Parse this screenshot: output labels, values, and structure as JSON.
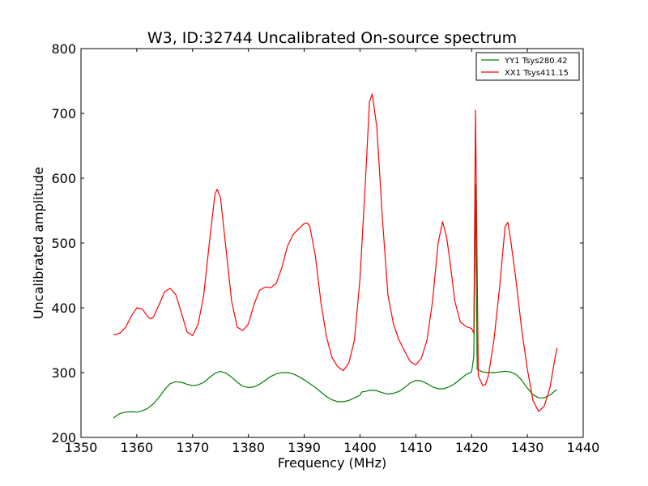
{
  "chart_data": {
    "type": "line",
    "title": "W3, ID:32744 Uncalibrated On-source spectrum",
    "xlabel": "Frequency (MHz)",
    "ylabel": "Uncalibrated amplitude",
    "xlim": [
      1350,
      1440
    ],
    "ylim": [
      200,
      800
    ],
    "xticks": [
      1350,
      1360,
      1370,
      1380,
      1390,
      1400,
      1410,
      1420,
      1430,
      1440
    ],
    "yticks": [
      200,
      300,
      400,
      500,
      600,
      700,
      800
    ],
    "grid": false,
    "legend_position": "top-right",
    "series": [
      {
        "name": "YY1 Tsys280.42",
        "color": "#008000",
        "points": [
          [
            1355.8,
            230
          ],
          [
            1357,
            237
          ],
          [
            1358,
            239
          ],
          [
            1359,
            239.5
          ],
          [
            1360,
            239
          ],
          [
            1361,
            241
          ],
          [
            1362,
            245
          ],
          [
            1363,
            252
          ],
          [
            1364,
            262
          ],
          [
            1365,
            274
          ],
          [
            1366,
            283
          ],
          [
            1367,
            286
          ],
          [
            1368,
            285
          ],
          [
            1369,
            282
          ],
          [
            1370,
            280
          ],
          [
            1371,
            281
          ],
          [
            1372,
            285
          ],
          [
            1373,
            292
          ],
          [
            1374,
            299
          ],
          [
            1375,
            302
          ],
          [
            1376,
            299
          ],
          [
            1377,
            293
          ],
          [
            1378,
            285
          ],
          [
            1379,
            279
          ],
          [
            1380,
            277
          ],
          [
            1381,
            278
          ],
          [
            1382,
            282
          ],
          [
            1383,
            288
          ],
          [
            1384,
            294
          ],
          [
            1385,
            298
          ],
          [
            1386,
            300
          ],
          [
            1387,
            300
          ],
          [
            1388,
            298
          ],
          [
            1389,
            294
          ],
          [
            1390,
            289
          ],
          [
            1391,
            283
          ],
          [
            1392,
            277
          ],
          [
            1393,
            270
          ],
          [
            1394,
            263
          ],
          [
            1395,
            258
          ],
          [
            1396,
            255
          ],
          [
            1397,
            255
          ],
          [
            1398,
            257
          ],
          [
            1399,
            261
          ],
          [
            1400,
            265
          ],
          [
            1400.3,
            270
          ],
          [
            1401,
            271
          ],
          [
            1402,
            273
          ],
          [
            1403,
            272
          ],
          [
            1404,
            269
          ],
          [
            1405,
            267
          ],
          [
            1406,
            268
          ],
          [
            1407,
            271
          ],
          [
            1408,
            277
          ],
          [
            1409,
            284
          ],
          [
            1410,
            288
          ],
          [
            1411,
            287
          ],
          [
            1412,
            283
          ],
          [
            1413,
            278
          ],
          [
            1414,
            275
          ],
          [
            1415,
            275
          ],
          [
            1416,
            278
          ],
          [
            1417,
            283
          ],
          [
            1418,
            290
          ],
          [
            1419,
            297
          ],
          [
            1420,
            301
          ],
          [
            1420.4,
            325
          ],
          [
            1420.7,
            590
          ],
          [
            1421,
            305
          ],
          [
            1422,
            301
          ],
          [
            1423,
            300
          ],
          [
            1424,
            300
          ],
          [
            1425,
            301
          ],
          [
            1426,
            302
          ],
          [
            1427,
            301
          ],
          [
            1428,
            297
          ],
          [
            1429,
            288
          ],
          [
            1430,
            276
          ],
          [
            1431,
            266
          ],
          [
            1432,
            261
          ],
          [
            1433,
            261
          ],
          [
            1434,
            265
          ],
          [
            1435,
            272
          ],
          [
            1435.3,
            274
          ]
        ]
      },
      {
        "name": "XX1 Tsys411.15",
        "color": "#ff0000",
        "points": [
          [
            1355.8,
            358
          ],
          [
            1357,
            361
          ],
          [
            1358,
            370
          ],
          [
            1359,
            387
          ],
          [
            1360,
            400
          ],
          [
            1361,
            398
          ],
          [
            1362,
            386
          ],
          [
            1362.5,
            383
          ],
          [
            1363,
            386
          ],
          [
            1364,
            405
          ],
          [
            1365,
            425
          ],
          [
            1366,
            430
          ],
          [
            1367,
            420
          ],
          [
            1368,
            392
          ],
          [
            1369,
            363
          ],
          [
            1370,
            357
          ],
          [
            1371,
            375
          ],
          [
            1372,
            420
          ],
          [
            1373,
            500
          ],
          [
            1374,
            575
          ],
          [
            1374.4,
            583
          ],
          [
            1375,
            570
          ],
          [
            1376,
            490
          ],
          [
            1377,
            410
          ],
          [
            1378,
            370
          ],
          [
            1379,
            365
          ],
          [
            1380,
            375
          ],
          [
            1381,
            405
          ],
          [
            1382,
            427
          ],
          [
            1383,
            432
          ],
          [
            1384,
            431
          ],
          [
            1385,
            438
          ],
          [
            1386,
            462
          ],
          [
            1387,
            495
          ],
          [
            1388,
            513
          ],
          [
            1389,
            522
          ],
          [
            1390,
            530
          ],
          [
            1390.5,
            531
          ],
          [
            1391,
            526
          ],
          [
            1392,
            480
          ],
          [
            1393,
            408
          ],
          [
            1394,
            355
          ],
          [
            1395,
            323
          ],
          [
            1396,
            309
          ],
          [
            1397,
            303
          ],
          [
            1398,
            315
          ],
          [
            1399,
            350
          ],
          [
            1400,
            445
          ],
          [
            1401,
            600
          ],
          [
            1401.7,
            718
          ],
          [
            1402.2,
            730
          ],
          [
            1403,
            680
          ],
          [
            1404,
            540
          ],
          [
            1405,
            420
          ],
          [
            1406,
            375
          ],
          [
            1407,
            350
          ],
          [
            1408,
            333
          ],
          [
            1409,
            317
          ],
          [
            1410,
            312
          ],
          [
            1411,
            322
          ],
          [
            1412,
            350
          ],
          [
            1413,
            410
          ],
          [
            1414,
            500
          ],
          [
            1414.8,
            533
          ],
          [
            1415.5,
            510
          ],
          [
            1416,
            480
          ],
          [
            1417,
            410
          ],
          [
            1418,
            378
          ],
          [
            1419,
            371
          ],
          [
            1420,
            368
          ],
          [
            1420.4,
            361
          ],
          [
            1420.7,
            705
          ],
          [
            1421.2,
            295
          ],
          [
            1422,
            280
          ],
          [
            1422.5,
            282
          ],
          [
            1423,
            295
          ],
          [
            1424,
            350
          ],
          [
            1425,
            430
          ],
          [
            1426,
            525
          ],
          [
            1426.5,
            532
          ],
          [
            1427,
            505
          ],
          [
            1428,
            440
          ],
          [
            1429,
            365
          ],
          [
            1430,
            305
          ],
          [
            1431,
            257
          ],
          [
            1432,
            240
          ],
          [
            1433,
            248
          ],
          [
            1434,
            275
          ],
          [
            1435,
            325
          ],
          [
            1435.3,
            338
          ]
        ]
      }
    ]
  }
}
